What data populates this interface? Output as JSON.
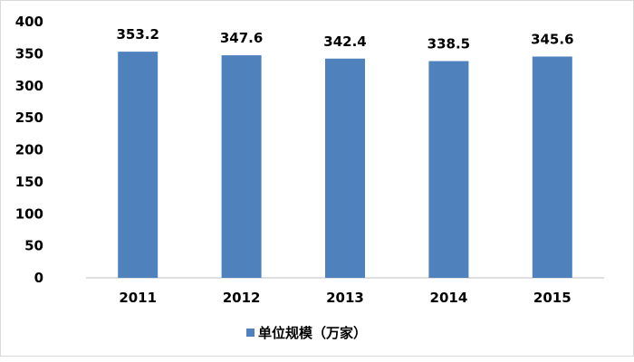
{
  "chart_data": {
    "type": "bar",
    "categories": [
      "2011",
      "2012",
      "2013",
      "2014",
      "2015"
    ],
    "series": [
      {
        "name": "单位规模（万家）",
        "values": [
          353.2,
          347.6,
          342.4,
          338.5,
          345.6
        ],
        "color": "#4f81bd"
      }
    ],
    "data_labels": [
      "353.2",
      "347.6",
      "342.4",
      "338.5",
      "345.6"
    ],
    "ylim": [
      0,
      400
    ],
    "yticks": [
      "0",
      "50",
      "100",
      "150",
      "200",
      "250",
      "300",
      "350",
      "400"
    ],
    "grid": false,
    "legend": "bottom",
    "xlabel": "",
    "ylabel": "",
    "title": ""
  }
}
